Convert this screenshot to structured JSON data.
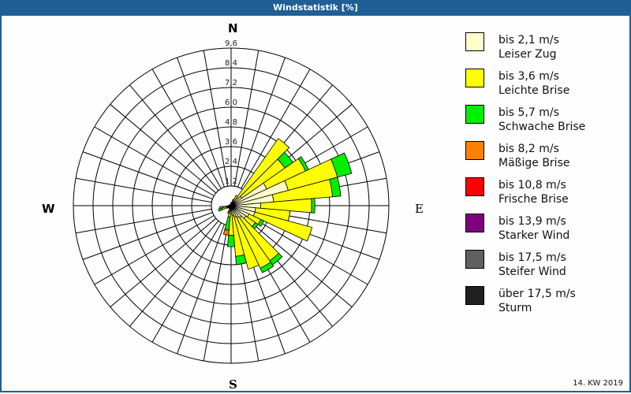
{
  "window": {
    "title": "Windstatistik [%]"
  },
  "compass": {
    "north": "N",
    "east": "E",
    "south": "S",
    "west": "W"
  },
  "footer": {
    "period": "14. KW 2019"
  },
  "legend": {
    "items": [
      {
        "range": "bis 2,1 m/s",
        "name": "Leiser Zug",
        "color": "#ffffcc"
      },
      {
        "range": "bis 3,6 m/s",
        "name": "Leichte Brise",
        "color": "#ffff00"
      },
      {
        "range": "bis 5,7 m/s",
        "name": "Schwache Brise",
        "color": "#00ee00"
      },
      {
        "range": "bis 8,2 m/s",
        "name": "Mäßige Brise",
        "color": "#ff8000"
      },
      {
        "range": "bis 10,8 m/s",
        "name": "Frische Brise",
        "color": "#ff0000"
      },
      {
        "range": "bis 13,9 m/s",
        "name": "Starker Wind",
        "color": "#800080"
      },
      {
        "range": "bis 17,5 m/s",
        "name": "Steifer Wind",
        "color": "#606060"
      },
      {
        "range": "über 17,5 m/s",
        "name": "Sturm",
        "color": "#202020"
      }
    ]
  },
  "chart_data": {
    "type": "wind-rose",
    "title": "Windstatistik [%]",
    "unit": "%",
    "radial_ticks": [
      "1,2",
      "2,4",
      "3,6",
      "4,8",
      "6,0",
      "7,2",
      "8,4",
      "9,6"
    ],
    "radial_max": 9.6,
    "sector_width_deg": 10,
    "speed_classes": [
      "bis 2,1 m/s",
      "bis 3,6 m/s",
      "bis 5,7 m/s",
      "bis 8,2 m/s",
      "bis 10,8 m/s",
      "bis 13,9 m/s",
      "bis 17,5 m/s",
      "über 17,5 m/s"
    ],
    "colors": [
      "#ffffcc",
      "#ffff00",
      "#00ee00",
      "#ff8000",
      "#ff0000",
      "#800080",
      "#606060",
      "#202020"
    ],
    "sectors": [
      {
        "dir": 0,
        "values": [
          0.2,
          0.0,
          0.0
        ]
      },
      {
        "dir": 10,
        "values": [
          0.2,
          0.0,
          0.0
        ]
      },
      {
        "dir": 20,
        "values": [
          0.3,
          0.1,
          0.0
        ]
      },
      {
        "dir": 30,
        "values": [
          0.4,
          0.3,
          0.0
        ]
      },
      {
        "dir": 40,
        "values": [
          0.6,
          4.4,
          0.0
        ]
      },
      {
        "dir": 50,
        "values": [
          0.8,
          3.2,
          0.6
        ]
      },
      {
        "dir": 60,
        "values": [
          2.4,
          2.6,
          0.2
        ]
      },
      {
        "dir": 70,
        "values": [
          3.6,
          3.1,
          0.9
        ]
      },
      {
        "dir": 80,
        "values": [
          2.6,
          3.6,
          0.5
        ]
      },
      {
        "dir": 90,
        "values": [
          1.8,
          3.1,
          0.2
        ]
      },
      {
        "dir": 100,
        "values": [
          1.5,
          2.1,
          0.0
        ]
      },
      {
        "dir": 110,
        "values": [
          1.5,
          3.6,
          0.0
        ]
      },
      {
        "dir": 120,
        "values": [
          1.2,
          0.8,
          0.2
        ]
      },
      {
        "dir": 130,
        "values": [
          1.1,
          0.7,
          0.2
        ]
      },
      {
        "dir": 140,
        "values": [
          0.9,
          3.2,
          0.3
        ]
      },
      {
        "dir": 150,
        "values": [
          0.8,
          3.4,
          0.3
        ]
      },
      {
        "dir": 160,
        "values": [
          0.7,
          3.3,
          0.0
        ]
      },
      {
        "dir": 170,
        "values": [
          0.6,
          2.5,
          0.5
        ]
      },
      {
        "dir": 180,
        "values": [
          0.5,
          1.3,
          0.7
        ]
      },
      {
        "dir": 190,
        "values": [
          0.4,
          0.3,
          0.8,
          0.3
        ]
      },
      {
        "dir": 200,
        "values": [
          0.3,
          0.1,
          0.0,
          0.1
        ]
      },
      {
        "dir": 210,
        "values": [
          0.2,
          0.0,
          0.0
        ]
      },
      {
        "dir": 220,
        "values": [
          0.2,
          0.0,
          0.0
        ]
      },
      {
        "dir": 230,
        "values": [
          0.2,
          0.0,
          0.0
        ]
      },
      {
        "dir": 240,
        "values": [
          0.2,
          0.1,
          0.0
        ]
      },
      {
        "dir": 250,
        "values": [
          0.2,
          0.4,
          0.2
        ]
      },
      {
        "dir": 260,
        "values": [
          0.2,
          0.3,
          0.2
        ]
      },
      {
        "dir": 270,
        "values": [
          0.2,
          0.0,
          0.0
        ]
      },
      {
        "dir": 280,
        "values": [
          0.1,
          0.0,
          0.0
        ]
      },
      {
        "dir": 290,
        "values": [
          0.1,
          0.0,
          0.0
        ]
      },
      {
        "dir": 300,
        "values": [
          0.1,
          0.0,
          0.0
        ]
      },
      {
        "dir": 310,
        "values": [
          0.1,
          0.0,
          0.0
        ]
      },
      {
        "dir": 320,
        "values": [
          0.1,
          0.0,
          0.0
        ]
      },
      {
        "dir": 330,
        "values": [
          0.1,
          0.0,
          0.0
        ]
      },
      {
        "dir": 340,
        "values": [
          0.1,
          0.0,
          0.0
        ]
      },
      {
        "dir": 350,
        "values": [
          0.1,
          0.0,
          0.0
        ]
      }
    ]
  }
}
